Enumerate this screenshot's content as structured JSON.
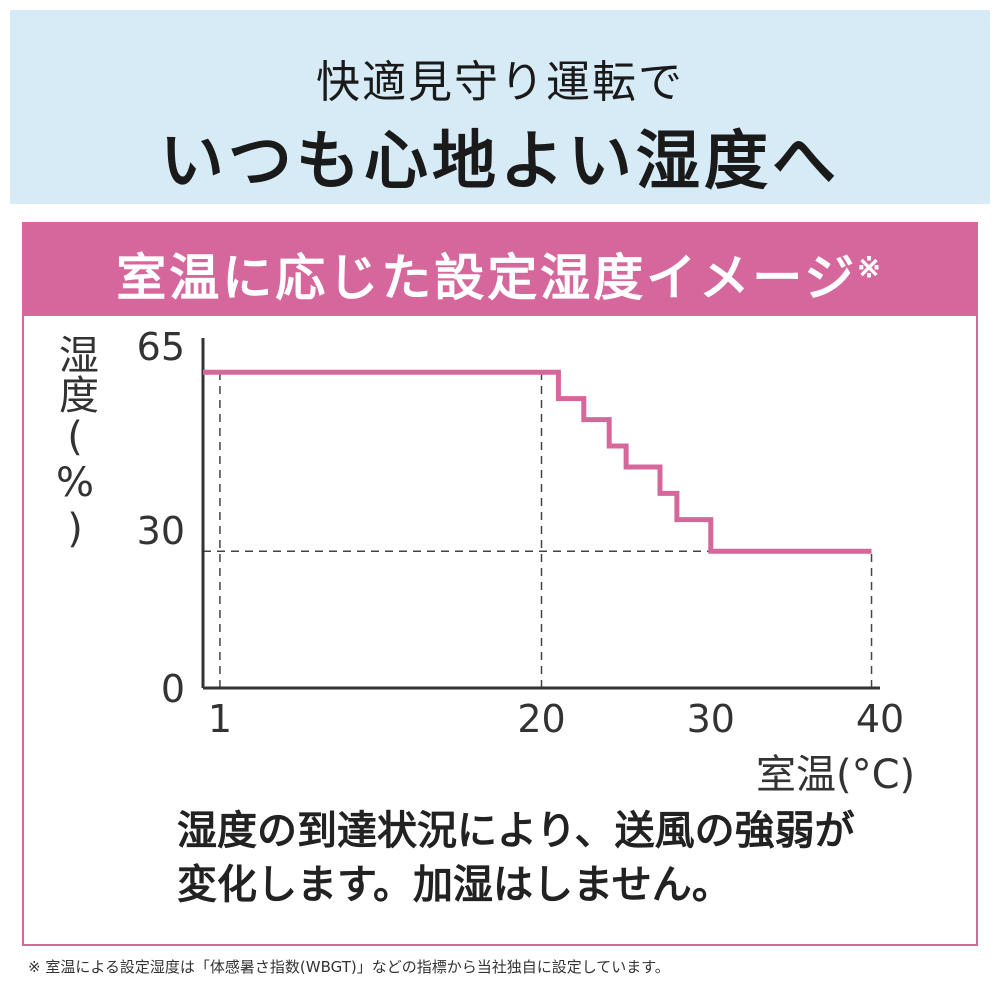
{
  "header": {
    "line1": "快適見守り運転で",
    "line2": "いつも心地よい湿度へ"
  },
  "banner": {
    "title": "室温に応じた設定湿度イメージ",
    "mark": "※"
  },
  "description": {
    "line1": "湿度の到達状況により、送風の強弱が",
    "line2": "変化します。加湿はしません。"
  },
  "footnote": "※ 室温による設定湿度は「体感暑さ指数(WBGT)」などの指標から当社独自に設定しています。",
  "colors": {
    "header_bg": "#d6ebf6",
    "accent_pink": "#d6679c",
    "axis": "#333333"
  },
  "chart_data": {
    "type": "line",
    "title": "",
    "xlabel": "室温(°C)",
    "ylabel": "湿度(%)",
    "x_ticks": [
      1,
      20,
      30,
      40
    ],
    "y_ticks": [
      0,
      30,
      65
    ],
    "xlim": [
      0,
      40
    ],
    "ylim": [
      0,
      65
    ],
    "grid": false,
    "step": true,
    "series": [
      {
        "color": "#d6679c",
        "x": [
          0,
          21,
          21,
          22.5,
          22.5,
          24,
          24,
          25,
          25,
          27,
          27,
          28,
          28,
          30,
          30,
          39.5
        ],
        "y": [
          60,
          60,
          55,
          55,
          51,
          51,
          46,
          46,
          42,
          42,
          37,
          37,
          32,
          32,
          26,
          26
        ]
      }
    ],
    "reference_lines": [
      {
        "x": 1,
        "y_from": 0,
        "y_to": 60
      },
      {
        "x": 20,
        "y_from": 0,
        "y_to": 60
      },
      {
        "x": 39.5,
        "y_from": 0,
        "y_to": 26
      },
      {
        "y": 26,
        "x_from": 0,
        "x_to": 30
      }
    ]
  }
}
